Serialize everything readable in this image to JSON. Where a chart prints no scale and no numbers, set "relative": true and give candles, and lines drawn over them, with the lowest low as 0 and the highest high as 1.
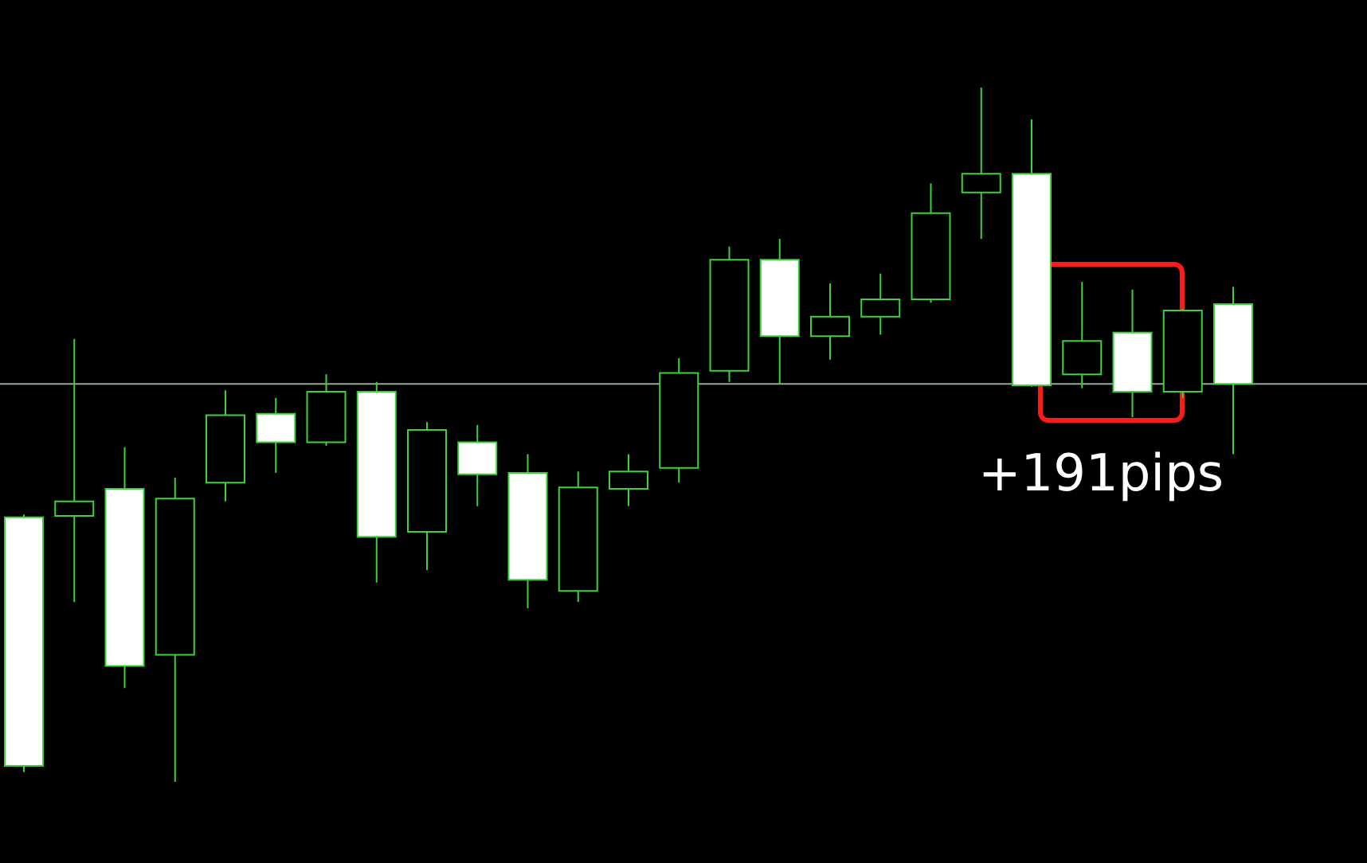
{
  "chart_data": {
    "type": "candlestick",
    "relative": true,
    "color": "#3ad13a",
    "categories": [
      null,
      null,
      null,
      null,
      null,
      null,
      null,
      null,
      null,
      null,
      null,
      null,
      null,
      null,
      null,
      null,
      null,
      null,
      null,
      null,
      null,
      null,
      null,
      null,
      null
    ],
    "ohlc": [
      [
        0.381,
        0.385,
        0.014,
        0.023
      ],
      [
        0.383,
        0.638,
        0.259,
        0.404
      ],
      [
        0.422,
        0.482,
        0.135,
        0.167
      ],
      [
        0.183,
        0.438,
        0,
        0.408
      ],
      [
        0.431,
        0.564,
        0.404,
        0.528
      ],
      [
        0.53,
        0.553,
        0.445,
        0.489
      ],
      [
        0.489,
        0.587,
        0.484,
        0.562
      ],
      [
        0.562,
        0.576,
        0.287,
        0.353
      ],
      [
        0.36,
        0.518,
        0.305,
        0.507
      ],
      [
        0.489,
        0.514,
        0.397,
        0.443
      ],
      [
        0.445,
        0.472,
        0.25,
        0.291
      ],
      [
        0.275,
        0.447,
        0.259,
        0.424
      ],
      [
        0.422,
        0.472,
        0.397,
        0.447
      ],
      [
        0.452,
        0.61,
        0.431,
        0.589
      ],
      [
        0.592,
        0.771,
        0.576,
        0.752
      ],
      [
        0.752,
        0.782,
        0.573,
        0.642
      ],
      [
        0.642,
        0.718,
        0.608,
        0.67
      ],
      [
        0.67,
        0.732,
        0.644,
        0.695
      ],
      [
        0.695,
        0.862,
        0.69,
        0.819
      ],
      [
        0.849,
        1,
        0.782,
        0.876
      ],
      [
        0.876,
        0.954,
        0.569,
        0.571
      ],
      [
        0.587,
        0.72,
        0.567,
        0.635
      ],
      [
        0.647,
        0.709,
        0.525,
        0.562
      ],
      [
        0.562,
        0.681,
        0.553,
        0.679
      ],
      [
        0.688,
        0.713,
        0.472,
        0.573
      ]
    ],
    "colors": [
      "#ffffff",
      "#000000",
      "#ffffff",
      "#000000",
      "#000000",
      "#ffffff",
      "#000000",
      "#ffffff",
      "#000000",
      "#ffffff",
      "#ffffff",
      "#000000",
      "#000000",
      "#000000",
      "#000000",
      "#ffffff",
      "#000000",
      "#000000",
      "#000000",
      "#000000",
      "#ffffff",
      "#000000",
      "#ffffff",
      "#000000",
      "#ffffff"
    ],
    "ref_lines": [
      {
        "axis": "y",
        "value": 0.573,
        "color": "#9aa89a"
      }
    ],
    "annotations": [
      "+191pips"
    ]
  }
}
